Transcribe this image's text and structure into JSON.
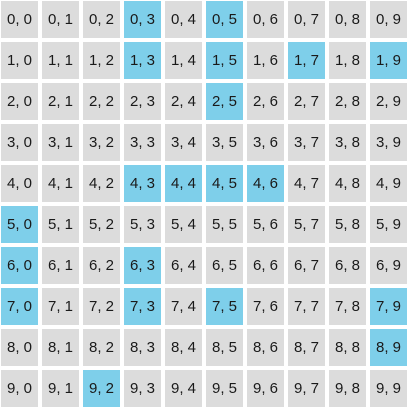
{
  "board": {
    "rows": 10,
    "cols": 10,
    "cell_color": "#dcdcdc",
    "highlight_color": "#7ecfea",
    "highlighted": [
      [
        0,
        3
      ],
      [
        0,
        5
      ],
      [
        1,
        3
      ],
      [
        1,
        5
      ],
      [
        1,
        7
      ],
      [
        1,
        9
      ],
      [
        2,
        5
      ],
      [
        4,
        3
      ],
      [
        4,
        4
      ],
      [
        4,
        5
      ],
      [
        4,
        6
      ],
      [
        5,
        0
      ],
      [
        6,
        0
      ],
      [
        6,
        3
      ],
      [
        7,
        0
      ],
      [
        7,
        3
      ],
      [
        7,
        5
      ],
      [
        7,
        9
      ],
      [
        8,
        9
      ],
      [
        9,
        2
      ]
    ]
  }
}
